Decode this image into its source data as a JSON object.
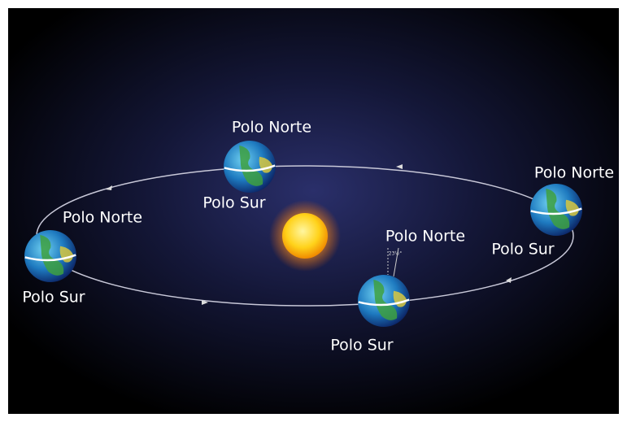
{
  "nodes": [
    {
      "north_label": "Polo Norte",
      "south_label": "Polo Sur"
    },
    {
      "north_label": "Polo Norte",
      "south_label": "Polo Sur"
    },
    {
      "north_label": "Polo Norte",
      "south_label": "Polo Sur",
      "angle_label": "23½°"
    },
    {
      "north_label": "Polo Norte",
      "south_label": "Polo Sur"
    }
  ]
}
